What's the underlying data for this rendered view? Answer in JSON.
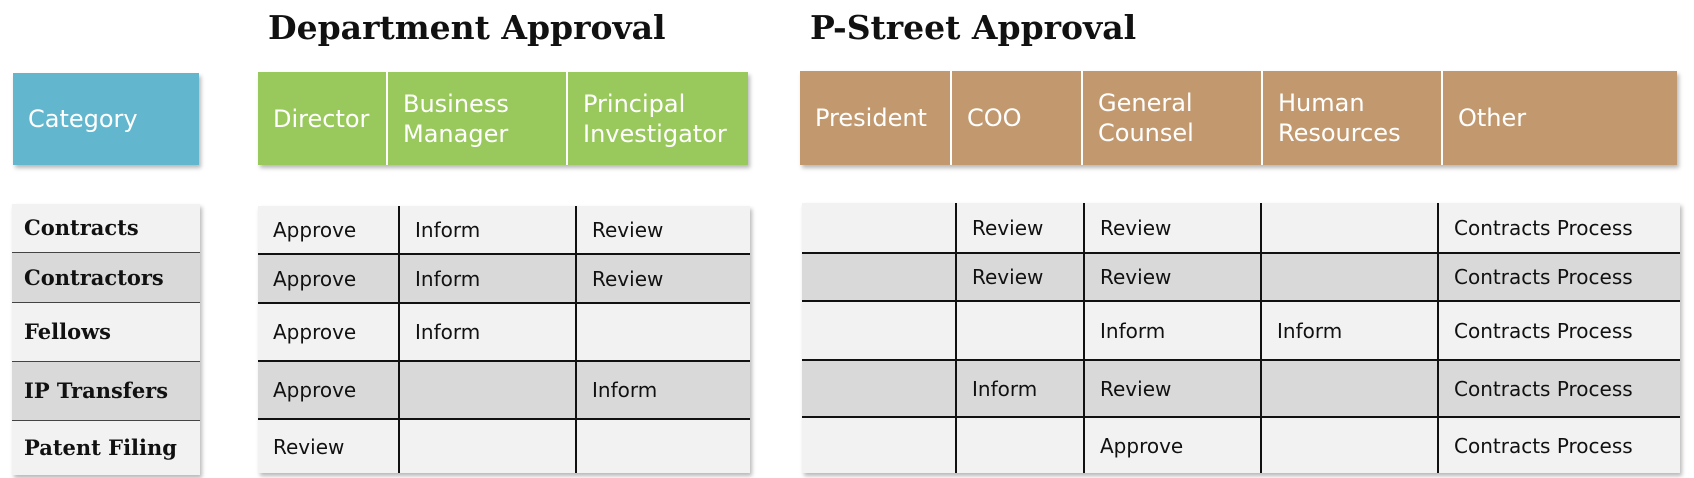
{
  "sections": {
    "department_title": "Department Approval",
    "pstreet_title": "P-Street Approval"
  },
  "category_header": "Category",
  "department_headers": [
    "Director",
    "Business Manager",
    "Principal Investigator"
  ],
  "pstreet_headers": [
    "President",
    "COO",
    "General Counsel",
    "Human Resources",
    "Other"
  ],
  "colors": {
    "category_header": "#62b7ce",
    "department_header": "#99c95c",
    "pstreet_header": "#c2996f",
    "row_light": "#f2f2f2",
    "row_dark": "#d9d9d9"
  },
  "rows": [
    {
      "category": "Contracts",
      "department": [
        "Approve",
        "Inform",
        "Review"
      ],
      "pstreet": [
        "",
        "Review",
        "Review",
        "",
        "Contracts Process"
      ]
    },
    {
      "category": "Contractors",
      "department": [
        "Approve",
        "Inform",
        "Review"
      ],
      "pstreet": [
        "",
        "Review",
        "Review",
        "",
        "Contracts Process"
      ]
    },
    {
      "category": "Fellows",
      "department": [
        "Approve",
        "Inform",
        ""
      ],
      "pstreet": [
        "",
        "",
        "Inform",
        "Inform",
        "Contracts Process"
      ]
    },
    {
      "category": "IP Transfers",
      "department": [
        "Approve",
        "",
        "Inform"
      ],
      "pstreet": [
        "",
        "Inform",
        "Review",
        "",
        "Contracts Process"
      ]
    },
    {
      "category": "Patent Filing",
      "department": [
        "Review",
        "",
        ""
      ],
      "pstreet": [
        "",
        "",
        "Approve",
        "",
        "Contracts Process"
      ]
    }
  ]
}
